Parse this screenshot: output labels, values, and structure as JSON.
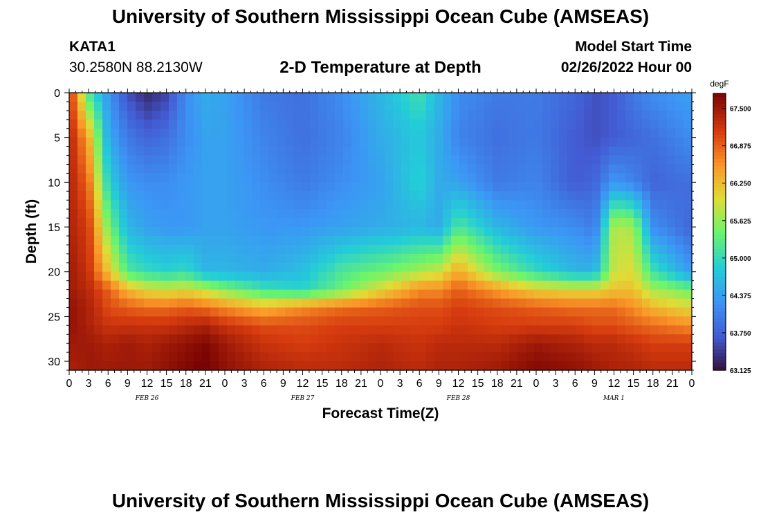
{
  "header": {
    "title": "University of Southern Mississippi Ocean Cube (AMSEAS)",
    "station_id": "KATA1",
    "coordinates": "30.2580N  88.2130W",
    "subtitle": "2-D Temperature at Depth",
    "model_start_label": "Model Start Time",
    "model_start_value": "02/26/2022 Hour 00"
  },
  "footer": {
    "title": "University of Southern Mississippi Ocean Cube (AMSEAS)"
  },
  "chart_data": {
    "type": "heatmap",
    "title": "2-D Temperature at Depth",
    "xlabel": "Forecast Time(Z)",
    "ylabel": "Depth (ft)",
    "x_tick_labels": [
      "0",
      "3",
      "6",
      "9",
      "12",
      "15",
      "18",
      "21",
      "0",
      "3",
      "6",
      "9",
      "12",
      "15",
      "18",
      "21",
      "0",
      "3",
      "6",
      "9",
      "12",
      "15",
      "18",
      "21",
      "0",
      "3",
      "6",
      "9",
      "12",
      "15",
      "18",
      "21",
      "0"
    ],
    "date_labels": [
      "FEB 26",
      "FEB 27",
      "FEB 28",
      "MAR 1"
    ],
    "x_range_hours": [
      0,
      96
    ],
    "y_ticks": [
      0,
      5,
      10,
      15,
      20,
      25,
      30
    ],
    "y_range_ft": [
      0,
      31
    ],
    "colorbar": {
      "unit": "degF",
      "ticks": [
        "67.500",
        "66.875",
        "66.250",
        "65.625",
        "65.000",
        "64.375",
        "63.750",
        "63.125"
      ],
      "min": 63.125,
      "max": 67.75
    },
    "depth_levels_ft": [
      0,
      5,
      10,
      15,
      20,
      22,
      24,
      26,
      28,
      31
    ],
    "time_hours": [
      0,
      3,
      6,
      9,
      12,
      15,
      18,
      21,
      24,
      30,
      36,
      42,
      48,
      54,
      57,
      60,
      66,
      72,
      78,
      81,
      84,
      87,
      90,
      96
    ],
    "temperature_degF": [
      [
        67.3,
        65.2,
        64.3,
        63.6,
        63.3,
        63.5,
        64.2,
        64.5,
        64.4,
        64.0,
        63.9,
        64.2,
        64.6,
        65.1,
        64.6,
        64.2,
        64.0,
        64.0,
        63.8,
        63.6,
        63.7,
        64.0,
        64.2,
        64.4
      ],
      [
        67.4,
        66.4,
        64.5,
        64.0,
        63.8,
        63.9,
        64.2,
        64.4,
        64.4,
        64.1,
        63.9,
        64.1,
        64.5,
        64.8,
        64.5,
        64.1,
        63.9,
        64.0,
        63.7,
        63.6,
        63.7,
        63.8,
        63.9,
        64.2
      ],
      [
        67.4,
        66.8,
        64.9,
        64.3,
        64.2,
        64.2,
        64.3,
        64.4,
        64.4,
        64.2,
        64.0,
        64.2,
        64.4,
        64.9,
        64.5,
        64.4,
        64.0,
        64.1,
        63.7,
        63.8,
        64.3,
        64.1,
        63.8,
        63.9
      ],
      [
        67.4,
        67.1,
        65.5,
        64.6,
        64.4,
        64.3,
        64.3,
        64.4,
        64.4,
        64.3,
        64.3,
        64.4,
        64.5,
        64.6,
        64.5,
        65.2,
        64.6,
        64.3,
        64.2,
        64.0,
        65.8,
        65.7,
        64.2,
        63.8
      ],
      [
        67.5,
        67.2,
        66.2,
        65.2,
        65.0,
        64.9,
        65.0,
        64.6,
        64.6,
        64.5,
        64.7,
        65.2,
        65.4,
        65.7,
        65.9,
        66.4,
        65.5,
        65.0,
        64.6,
        64.6,
        65.9,
        66.0,
        65.1,
        64.3
      ],
      [
        67.5,
        67.3,
        66.9,
        66.3,
        66.0,
        65.9,
        66.0,
        65.8,
        65.5,
        65.1,
        64.9,
        65.4,
        66.0,
        66.6,
        66.6,
        66.9,
        66.5,
        66.1,
        66.0,
        66.0,
        66.2,
        66.2,
        65.7,
        65.4
      ],
      [
        67.6,
        67.4,
        67.0,
        66.9,
        66.8,
        66.8,
        66.9,
        66.8,
        66.6,
        66.3,
        66.6,
        66.8,
        66.9,
        67.0,
        67.0,
        67.1,
        67.0,
        66.9,
        66.8,
        66.8,
        66.8,
        66.6,
        66.3,
        66.0
      ],
      [
        67.6,
        67.4,
        67.2,
        67.2,
        67.2,
        67.2,
        67.3,
        67.4,
        67.2,
        67.0,
        67.0,
        67.1,
        67.1,
        67.1,
        67.1,
        67.2,
        67.1,
        67.1,
        67.1,
        67.0,
        67.0,
        66.9,
        66.8,
        66.6
      ],
      [
        67.5,
        67.5,
        67.4,
        67.5,
        67.4,
        67.5,
        67.6,
        67.7,
        67.5,
        67.2,
        67.1,
        67.2,
        67.3,
        67.2,
        67.3,
        67.3,
        67.3,
        67.5,
        67.4,
        67.3,
        67.3,
        67.2,
        67.1,
        67.1
      ],
      [
        67.4,
        67.5,
        67.5,
        67.5,
        67.5,
        67.6,
        67.7,
        67.8,
        67.6,
        67.4,
        67.3,
        67.3,
        67.4,
        67.3,
        67.4,
        67.4,
        67.5,
        67.7,
        67.6,
        67.5,
        67.4,
        67.4,
        67.3,
        67.3
      ]
    ]
  }
}
